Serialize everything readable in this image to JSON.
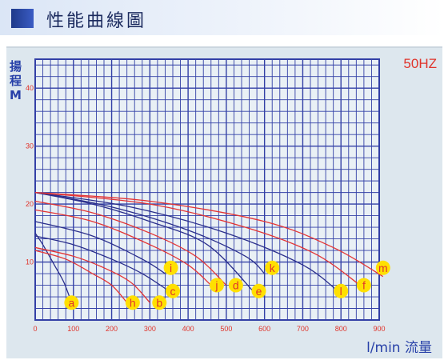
{
  "header": {
    "title": "性能曲線圖"
  },
  "frequency_label": "50HZ",
  "colors": {
    "grid": "#3340a6",
    "curve_red": "#e43434",
    "curve_navy": "#2b2f8c",
    "marker": "#ffe000",
    "freq_text": "#e0342b",
    "label_text": "#2740a8"
  },
  "chart_data": {
    "type": "line",
    "title": "性能曲線圖",
    "xlabel": "l/min 流量",
    "ylabel": "揚程 M",
    "xlim": [
      0,
      900
    ],
    "ylim": [
      0,
      45
    ],
    "x_ticks": [
      "0",
      "100",
      "200",
      "300",
      "400",
      "500",
      "600",
      "700",
      "800",
      "900"
    ],
    "y_ticks": [
      "10",
      "20",
      "30",
      "40"
    ],
    "grid": true,
    "series": [
      {
        "name": "a",
        "color": "#2b2f8c",
        "points": [
          [
            0,
            15
          ],
          [
            20,
            13
          ],
          [
            50,
            9.5
          ],
          [
            75,
            6.5
          ],
          [
            95,
            3
          ]
        ]
      },
      {
        "name": "h",
        "color": "#e43434",
        "points": [
          [
            0,
            12
          ],
          [
            80,
            10.5
          ],
          [
            150,
            8
          ],
          [
            200,
            6
          ],
          [
            240,
            3
          ]
        ]
      },
      {
        "name": "b",
        "color": "#e43434",
        "points": [
          [
            0,
            12.5
          ],
          [
            100,
            11
          ],
          [
            180,
            9
          ],
          [
            250,
            6.5
          ],
          [
            300,
            3
          ]
        ]
      },
      {
        "name": "c",
        "color": "#2b2f8c",
        "points": [
          [
            0,
            14.5
          ],
          [
            100,
            13
          ],
          [
            200,
            10.5
          ],
          [
            280,
            8
          ],
          [
            350,
            5
          ]
        ]
      },
      {
        "name": "i",
        "color": "#2b2f8c",
        "points": [
          [
            0,
            17
          ],
          [
            150,
            14.5
          ],
          [
            280,
            10.5
          ],
          [
            340,
            8
          ]
        ]
      },
      {
        "name": "j",
        "color": "#e43434",
        "points": [
          [
            0,
            19
          ],
          [
            150,
            17
          ],
          [
            300,
            13
          ],
          [
            400,
            9.5
          ],
          [
            460,
            6
          ]
        ]
      },
      {
        "name": "d",
        "color": "#e43434",
        "points": [
          [
            0,
            20.5
          ],
          [
            150,
            18.5
          ],
          [
            300,
            15
          ],
          [
            420,
            11
          ],
          [
            500,
            6
          ]
        ]
      },
      {
        "name": "e",
        "color": "#2b2f8c",
        "points": [
          [
            0,
            22
          ],
          [
            150,
            20
          ],
          [
            300,
            17
          ],
          [
            450,
            13
          ],
          [
            570,
            5
          ]
        ]
      },
      {
        "name": "k",
        "color": "#2b2f8c",
        "points": [
          [
            0,
            22
          ],
          [
            200,
            19.5
          ],
          [
            400,
            15.5
          ],
          [
            550,
            11
          ],
          [
            600,
            8
          ]
        ]
      },
      {
        "name": "l",
        "color": "#2b2f8c",
        "points": [
          [
            0,
            22
          ],
          [
            250,
            19.5
          ],
          [
            500,
            15
          ],
          [
            700,
            9.5
          ],
          [
            800,
            4.5
          ]
        ]
      },
      {
        "name": "f",
        "color": "#e43434",
        "points": [
          [
            0,
            22
          ],
          [
            300,
            20
          ],
          [
            550,
            16
          ],
          [
            730,
            11.5
          ],
          [
            850,
            6
          ]
        ]
      },
      {
        "name": "m",
        "color": "#e43434",
        "points": [
          [
            0,
            22
          ],
          [
            300,
            20.5
          ],
          [
            600,
            17
          ],
          [
            780,
            12.5
          ],
          [
            910,
            7.5
          ]
        ]
      }
    ],
    "markers": [
      {
        "label": "a",
        "x": 95,
        "y": 3
      },
      {
        "label": "h",
        "x": 255,
        "y": 3
      },
      {
        "label": "b",
        "x": 325,
        "y": 3
      },
      {
        "label": "c",
        "x": 360,
        "y": 5
      },
      {
        "label": "i",
        "x": 355,
        "y": 9
      },
      {
        "label": "j",
        "x": 475,
        "y": 6
      },
      {
        "label": "d",
        "x": 525,
        "y": 6
      },
      {
        "label": "e",
        "x": 585,
        "y": 5
      },
      {
        "label": "k",
        "x": 620,
        "y": 9
      },
      {
        "label": "l",
        "x": 800,
        "y": 5
      },
      {
        "label": "f",
        "x": 860,
        "y": 6
      },
      {
        "label": "m",
        "x": 910,
        "y": 9
      }
    ]
  }
}
